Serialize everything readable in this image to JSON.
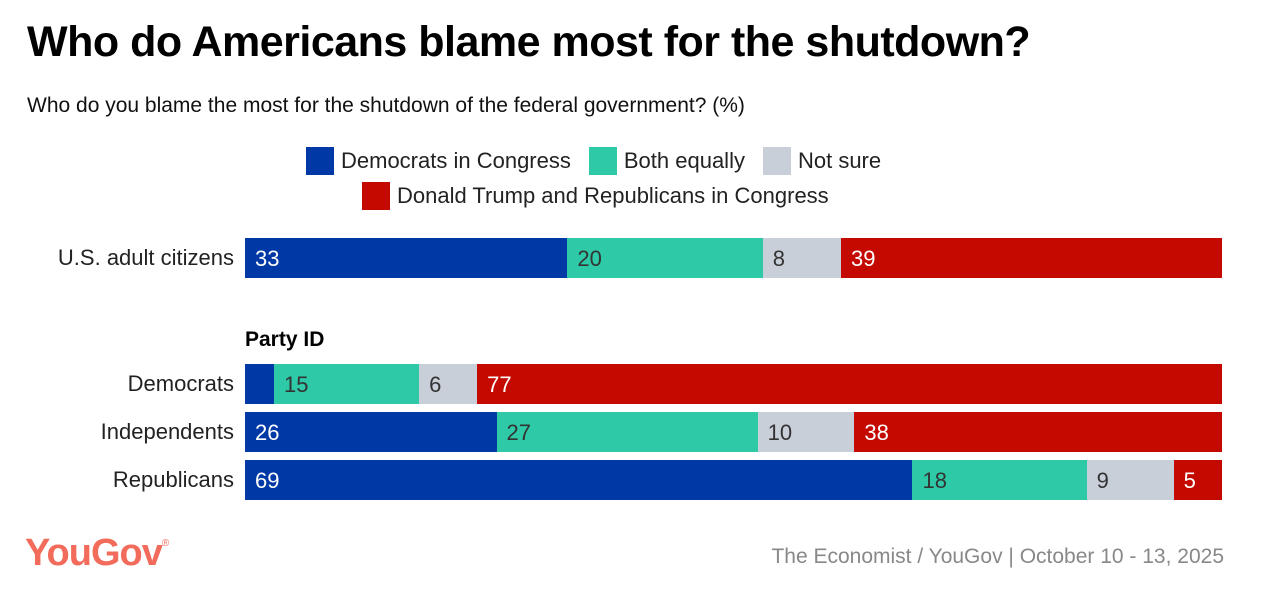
{
  "chart_data": {
    "type": "bar",
    "orientation": "horizontal-stacked",
    "title": "Who do Americans blame most for the shutdown?",
    "subtitle": "Who do you blame the most for the shutdown of the federal government? (%)",
    "series": [
      {
        "name": "Democrats in Congress",
        "color": "#0039a6"
      },
      {
        "name": "Both equally",
        "color": "#2ec9a7"
      },
      {
        "name": "Not sure",
        "color": "#c9cfd9"
      },
      {
        "name": "Donald Trump and Republicans in Congress",
        "color": "#c40a00"
      }
    ],
    "rows": [
      {
        "category": "U.S. adult citizens",
        "values": [
          33,
          20,
          8,
          39
        ],
        "labels": [
          "33",
          "20",
          "8",
          "39"
        ]
      },
      {
        "category": "Democrats",
        "values": [
          3,
          15,
          6,
          77
        ],
        "labels": [
          "",
          "15",
          "6",
          "77"
        ]
      },
      {
        "category": "Independents",
        "values": [
          26,
          27,
          10,
          38
        ],
        "labels": [
          "26",
          "27",
          "10",
          "38"
        ]
      },
      {
        "category": "Republicans",
        "values": [
          69,
          18,
          9,
          5
        ],
        "labels": [
          "69",
          "18",
          "9",
          "5"
        ]
      }
    ],
    "group_heading": "Party ID",
    "xlim": [
      0,
      100
    ]
  },
  "footer": {
    "logo": "YouGov",
    "source": "The Economist / YouGov | October 10 - 13, 2025"
  }
}
